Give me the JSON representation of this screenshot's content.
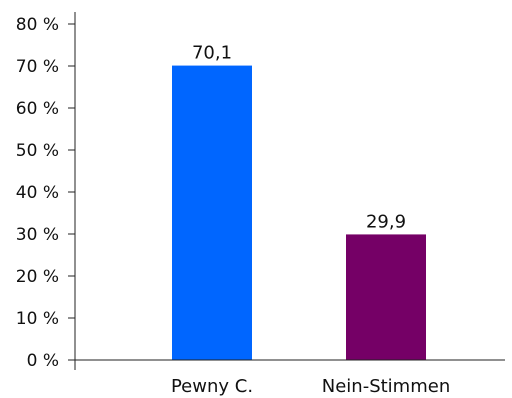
{
  "chart_data": {
    "type": "bar",
    "categories": [
      "Pewny C.",
      "Nein-Stimmen"
    ],
    "values": [
      70.1,
      29.9
    ],
    "data_labels": [
      "70,1",
      "29,9"
    ],
    "colors": [
      "#0066ff",
      "#750066"
    ],
    "ylim": [
      0,
      80
    ],
    "yticks": [
      0,
      10,
      20,
      30,
      40,
      50,
      60,
      70,
      80
    ],
    "ytick_labels": [
      "0 %",
      "10 %",
      "20 %",
      "30 %",
      "40 %",
      "50 %",
      "60 %",
      "70 %",
      "80 %"
    ],
    "grid": false,
    "title": "",
    "xlabel": "",
    "ylabel": ""
  }
}
